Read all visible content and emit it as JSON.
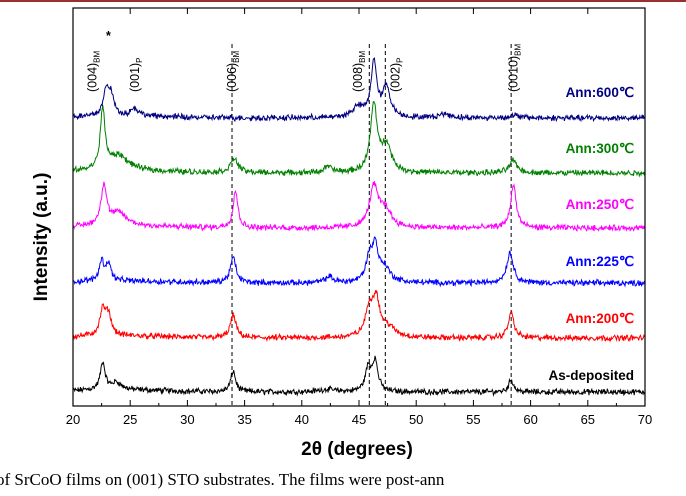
{
  "chart_data": {
    "type": "line",
    "xlabel": "2θ (degrees)",
    "ylabel": "Intensity (a.u.)",
    "xlim": [
      20,
      70
    ],
    "xticks": [
      20,
      25,
      30,
      35,
      40,
      45,
      50,
      55,
      60,
      65,
      70
    ],
    "reference_lines_x": [
      33.9,
      45.9,
      47.3,
      58.3
    ],
    "peak_labels": [
      {
        "text": "(004)",
        "sub": "BM",
        "x": 21.7
      },
      {
        "text": "*",
        "sub": "",
        "x": 23.1
      },
      {
        "text": "(001)",
        "sub": "P",
        "x": 25.4
      },
      {
        "text": "(006)",
        "sub": "BM",
        "x": 33.9
      },
      {
        "text": "(008)",
        "sub": "BM",
        "x": 44.9
      },
      {
        "text": "(002)",
        "sub": "P",
        "x": 48.2
      },
      {
        "text": "(0010)",
        "sub": "BM",
        "x": 58.5
      }
    ],
    "series": [
      {
        "name": "As-deposited",
        "color": "#000000",
        "offset": 0.0,
        "amp": 1.0,
        "peaks": [
          [
            22.6,
            0.55,
            0.25
          ],
          [
            23.8,
            0.15,
            0.5
          ],
          [
            34.0,
            0.42,
            0.25
          ],
          [
            42.2,
            0.05,
            0.8
          ],
          [
            45.8,
            0.45,
            0.3
          ],
          [
            46.4,
            0.6,
            0.3
          ],
          [
            58.3,
            0.25,
            0.25
          ]
        ]
      },
      {
        "name": "Ann:200℃",
        "color": "#ff0000",
        "offset": 1.0,
        "amp": 1.0,
        "peaks": [
          [
            22.6,
            0.5,
            0.3
          ],
          [
            23.1,
            0.4,
            0.3
          ],
          [
            34.0,
            0.45,
            0.3
          ],
          [
            45.9,
            0.55,
            0.4
          ],
          [
            46.5,
            0.7,
            0.35
          ],
          [
            47.5,
            0.2,
            0.8
          ],
          [
            58.3,
            0.5,
            0.3
          ]
        ]
      },
      {
        "name": "Ann:225℃",
        "color": "#0000ff",
        "offset": 2.0,
        "amp": 1.0,
        "peaks": [
          [
            22.5,
            0.4,
            0.25
          ],
          [
            23.1,
            0.35,
            0.25
          ],
          [
            34.0,
            0.5,
            0.3
          ],
          [
            42.4,
            0.12,
            0.4
          ],
          [
            45.9,
            0.45,
            0.35
          ],
          [
            46.4,
            0.65,
            0.3
          ],
          [
            47.2,
            0.3,
            0.6
          ],
          [
            58.2,
            0.6,
            0.35
          ]
        ]
      },
      {
        "name": "Ann:250℃",
        "color": "#ff00ff",
        "offset": 3.0,
        "amp": 1.0,
        "peaks": [
          [
            22.7,
            0.8,
            0.3
          ],
          [
            24.0,
            0.25,
            0.8
          ],
          [
            34.2,
            0.75,
            0.25
          ],
          [
            46.3,
            0.8,
            0.45
          ],
          [
            47.3,
            0.35,
            0.6
          ],
          [
            58.5,
            0.85,
            0.3
          ]
        ]
      },
      {
        "name": "Ann:300℃",
        "color": "#008000",
        "offset": 4.0,
        "amp": 1.0,
        "peaks": [
          [
            22.6,
            1.2,
            0.25
          ],
          [
            24.0,
            0.3,
            1.0
          ],
          [
            34.1,
            0.28,
            0.4
          ],
          [
            42.3,
            0.12,
            0.4
          ],
          [
            46.3,
            1.35,
            0.35
          ],
          [
            47.4,
            0.55,
            0.5
          ],
          [
            58.5,
            0.25,
            0.4
          ]
        ]
      },
      {
        "name": "Ann:600℃",
        "color": "#000080",
        "offset": 5.0,
        "amp": 1.0,
        "peaks": [
          [
            22.9,
            0.45,
            0.3
          ],
          [
            23.3,
            0.4,
            0.3
          ],
          [
            25.4,
            0.15,
            0.4
          ],
          [
            44.9,
            0.2,
            0.6
          ],
          [
            46.3,
            1.1,
            0.3
          ],
          [
            47.4,
            0.6,
            0.4
          ],
          [
            52.5,
            0.08,
            0.6
          ],
          [
            58.6,
            0.05,
            0.5
          ]
        ]
      }
    ]
  },
  "caption": "of SrCoO  films on (001) STO substrates. The films were post-ann"
}
